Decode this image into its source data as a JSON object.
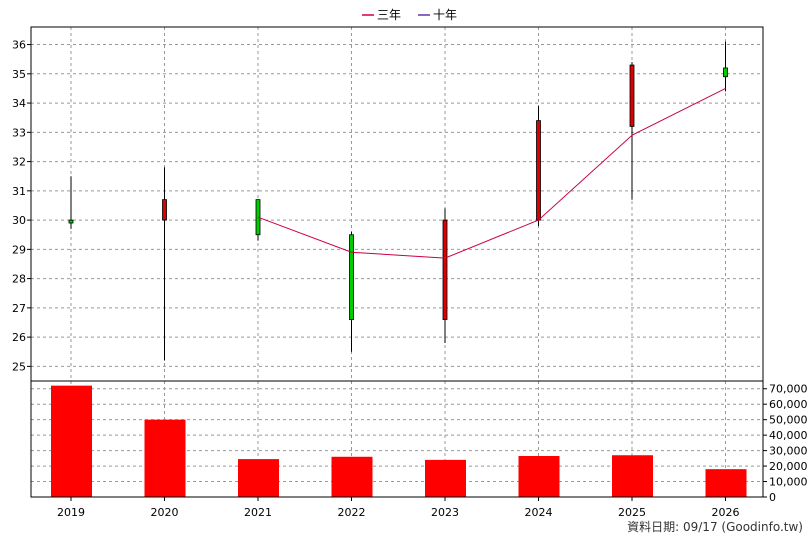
{
  "chart_data": {
    "type": "candlestick-with-volume",
    "legend": [
      {
        "name": "三年",
        "color": "#cc0044"
      },
      {
        "name": "十年",
        "color": "#6633aa"
      }
    ],
    "years": [
      "2019",
      "2020",
      "2021",
      "2022",
      "2023",
      "2024",
      "2025",
      "2026"
    ],
    "price": {
      "ylim": [
        24.5,
        36.6
      ],
      "ticks": [
        25,
        26,
        27,
        28,
        29,
        30,
        31,
        32,
        33,
        34,
        35,
        36
      ],
      "candles": [
        {
          "year": "2019",
          "open": 30.0,
          "close": 29.9,
          "high": 31.5,
          "low": 29.7
        },
        {
          "year": "2020",
          "open": 30.0,
          "close": 30.7,
          "high": 31.8,
          "low": 25.2
        },
        {
          "year": "2021",
          "open": 30.7,
          "close": 29.5,
          "high": 30.7,
          "low": 29.3
        },
        {
          "year": "2022",
          "open": 29.5,
          "close": 26.6,
          "high": 29.6,
          "low": 25.5
        },
        {
          "year": "2023",
          "open": 26.6,
          "close": 30.0,
          "high": 30.4,
          "low": 25.8
        },
        {
          "year": "2024",
          "open": 30.0,
          "close": 33.4,
          "high": 33.9,
          "low": 29.8
        },
        {
          "year": "2025",
          "open": 33.2,
          "close": 35.3,
          "high": 35.4,
          "low": 30.7
        },
        {
          "year": "2026",
          "open": 35.2,
          "close": 34.9,
          "high": 36.1,
          "low": 34.4
        }
      ],
      "ma_series": {
        "name": "三年",
        "years": [
          "2021",
          "2022",
          "2023",
          "2024",
          "2025",
          "2026"
        ],
        "values": [
          30.1,
          28.9,
          28.7,
          30.0,
          32.9,
          34.5
        ]
      }
    },
    "volume": {
      "ylim": [
        0,
        75000
      ],
      "ticks": [
        0,
        10000,
        20000,
        30000,
        40000,
        50000,
        60000,
        70000
      ],
      "tick_labels": [
        "0",
        "10,000",
        "20,000",
        "30,000",
        "40,000",
        "50,000",
        "60,000",
        "70,000"
      ],
      "values": [
        72000,
        50000,
        24500,
        26000,
        24000,
        26500,
        27000,
        18000
      ]
    },
    "colors": {
      "up": "#dd0000",
      "down": "#00cc00",
      "volume": "#ff0000",
      "grid": "#999999"
    }
  },
  "footer": {
    "text": "資料日期: 09/17  (Goodinfo.tw)"
  }
}
